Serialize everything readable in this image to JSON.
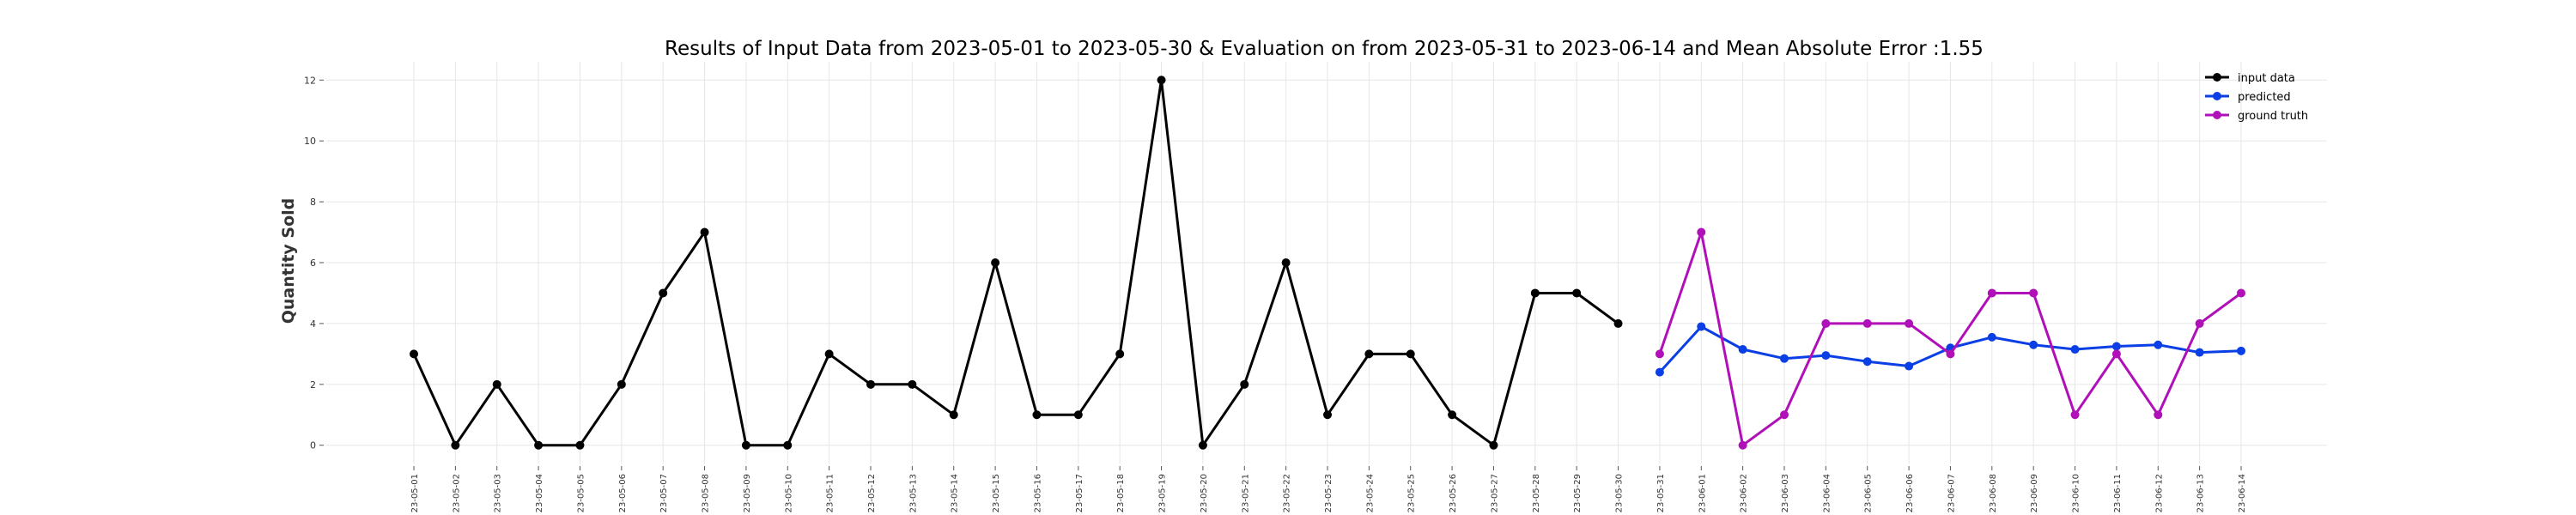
{
  "chart_data": {
    "type": "line",
    "title": "Results of Input Data from 2023-05-01 to 2023-05-30 & Evaluation on from 2023-05-31 to 2023-06-14 and Mean Absolute Error  :1.55",
    "xlabel": "",
    "ylabel": "Quantity Sold",
    "ylim": [
      -0.6,
      12.6
    ],
    "yticks": [
      0,
      2,
      4,
      6,
      8,
      10,
      12
    ],
    "grid": true,
    "legend_position": "top-right",
    "x": [
      "2023-05-01",
      "2023-05-02",
      "2023-05-03",
      "2023-05-04",
      "2023-05-05",
      "2023-05-06",
      "2023-05-07",
      "2023-05-08",
      "2023-05-09",
      "2023-05-10",
      "2023-05-11",
      "2023-05-12",
      "2023-05-13",
      "2023-05-14",
      "2023-05-15",
      "2023-05-16",
      "2023-05-17",
      "2023-05-18",
      "2023-05-19",
      "2023-05-20",
      "2023-05-21",
      "2023-05-22",
      "2023-05-23",
      "2023-05-24",
      "2023-05-25",
      "2023-05-26",
      "2023-05-27",
      "2023-05-28",
      "2023-05-29",
      "2023-05-30",
      "2023-05-31",
      "2023-06-01",
      "2023-06-02",
      "2023-06-03",
      "2023-06-04",
      "2023-06-05",
      "2023-06-06",
      "2023-06-07",
      "2023-06-08",
      "2023-06-09",
      "2023-06-10",
      "2023-06-11",
      "2023-06-12",
      "2023-06-13",
      "2023-06-14"
    ],
    "x_tick_labels": [
      "23-05-01",
      "23-05-02",
      "23-05-03",
      "23-05-04",
      "23-05-05",
      "23-05-06",
      "23-05-07",
      "23-05-08",
      "23-05-09",
      "23-05-10",
      "23-05-11",
      "23-05-12",
      "23-05-13",
      "23-05-14",
      "23-05-15",
      "23-05-16",
      "23-05-17",
      "23-05-18",
      "23-05-19",
      "23-05-20",
      "23-05-21",
      "23-05-22",
      "23-05-23",
      "23-05-24",
      "23-05-25",
      "23-05-26",
      "23-05-27",
      "23-05-28",
      "23-05-29",
      "23-05-30",
      "23-05-31",
      "23-06-01",
      "23-06-02",
      "23-06-03",
      "23-06-04",
      "23-06-05",
      "23-06-06",
      "23-06-07",
      "23-06-08",
      "23-06-09",
      "23-06-10",
      "23-06-11",
      "23-06-12",
      "23-06-13",
      "23-06-14"
    ],
    "series": [
      {
        "name": "input data",
        "color": "#000000",
        "x": [
          "2023-05-01",
          "2023-05-02",
          "2023-05-03",
          "2023-05-04",
          "2023-05-05",
          "2023-05-06",
          "2023-05-07",
          "2023-05-08",
          "2023-05-09",
          "2023-05-10",
          "2023-05-11",
          "2023-05-12",
          "2023-05-13",
          "2023-05-14",
          "2023-05-15",
          "2023-05-16",
          "2023-05-17",
          "2023-05-18",
          "2023-05-19",
          "2023-05-20",
          "2023-05-21",
          "2023-05-22",
          "2023-05-23",
          "2023-05-24",
          "2023-05-25",
          "2023-05-26",
          "2023-05-27",
          "2023-05-28",
          "2023-05-29",
          "2023-05-30"
        ],
        "values": [
          3,
          0,
          2,
          0,
          0,
          2,
          5,
          7,
          0,
          0,
          3,
          2,
          2,
          1,
          6,
          1,
          1,
          3,
          12,
          0,
          2,
          6,
          1,
          3,
          3,
          1,
          0,
          5,
          5,
          4
        ]
      },
      {
        "name": "predicted",
        "color": "#0a3fe6",
        "x": [
          "2023-05-31",
          "2023-06-01",
          "2023-06-02",
          "2023-06-03",
          "2023-06-04",
          "2023-06-05",
          "2023-06-06",
          "2023-06-07",
          "2023-06-08",
          "2023-06-09",
          "2023-06-10",
          "2023-06-11",
          "2023-06-12",
          "2023-06-13",
          "2023-06-14"
        ],
        "values": [
          2.4,
          3.9,
          3.15,
          2.85,
          2.95,
          2.75,
          2.6,
          3.2,
          3.55,
          3.3,
          3.15,
          3.25,
          3.3,
          3.05,
          3.1
        ]
      },
      {
        "name": "ground truth",
        "color": "#b010b8",
        "x": [
          "2023-05-31",
          "2023-06-01",
          "2023-06-02",
          "2023-06-03",
          "2023-06-04",
          "2023-06-05",
          "2023-06-06",
          "2023-06-07",
          "2023-06-08",
          "2023-06-09",
          "2023-06-10",
          "2023-06-11",
          "2023-06-12",
          "2023-06-13",
          "2023-06-14"
        ],
        "values": [
          3,
          7,
          0,
          1,
          4,
          4,
          4,
          3,
          5,
          5,
          1,
          3,
          1,
          4,
          5
        ]
      }
    ]
  }
}
